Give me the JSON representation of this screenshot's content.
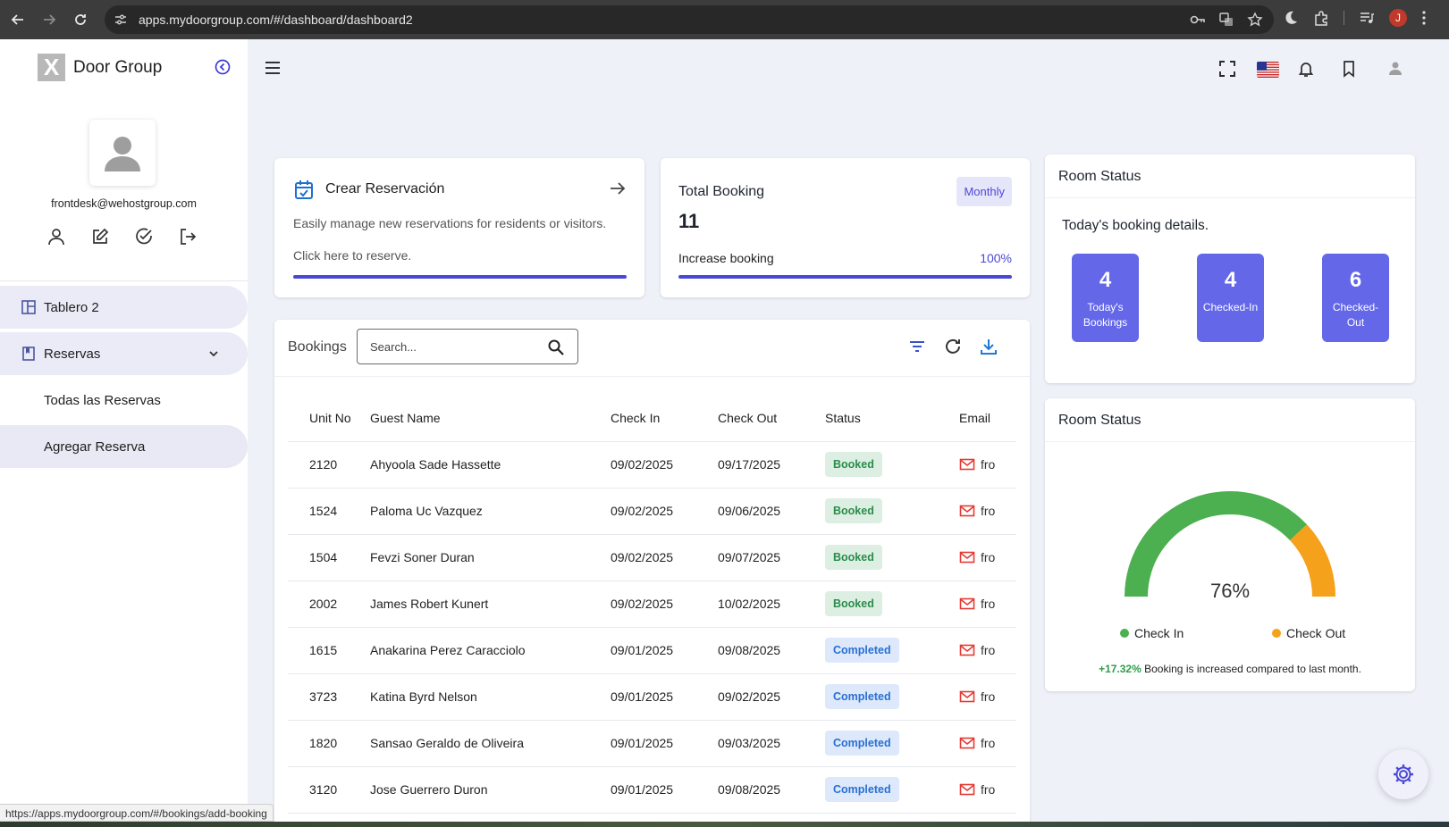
{
  "browser": {
    "url": "apps.mydoorgroup.com/#/dashboard/dashboard2",
    "profile_initial": "J",
    "link_preview": "https://apps.mydoorgroup.com/#/bookings/add-booking"
  },
  "sidebar": {
    "brand_letter": "X",
    "brand_name": "Door Group",
    "user_email": "frontdesk@wehostgroup.com",
    "menu": [
      {
        "label": "Tablero 2",
        "icon": "dashboard-icon"
      },
      {
        "label": "Reservas",
        "icon": "bookmark-icon"
      }
    ],
    "submenu": [
      {
        "label": "Todas las Reservas"
      },
      {
        "label": "Agregar Reserva"
      }
    ]
  },
  "reserve_card": {
    "title": "Crear Reservación",
    "description": "Easily manage new reservations for residents or visitors.",
    "link": "Click here to reserve."
  },
  "booking_card": {
    "title": "Total Booking",
    "badge": "Monthly",
    "count": "11",
    "increase_label": "Increase booking",
    "increase_value": "100%",
    "progress": 1.0
  },
  "bookings": {
    "label": "Bookings",
    "search_placeholder": "Search...",
    "columns": [
      "Unit No",
      "Guest Name",
      "Check In",
      "Check Out",
      "Status",
      "Email"
    ],
    "rows": [
      {
        "unit": "2120",
        "guest": "Ahyoola Sade Hassette",
        "check_in": "09/02/2025",
        "check_out": "09/17/2025",
        "status": "Booked",
        "email": "fro"
      },
      {
        "unit": "1524",
        "guest": "Paloma Uc Vazquez",
        "check_in": "09/02/2025",
        "check_out": "09/06/2025",
        "status": "Booked",
        "email": "fro"
      },
      {
        "unit": "1504",
        "guest": "Fevzi Soner Duran",
        "check_in": "09/02/2025",
        "check_out": "09/07/2025",
        "status": "Booked",
        "email": "fro"
      },
      {
        "unit": "2002",
        "guest": "James Robert Kunert",
        "check_in": "09/02/2025",
        "check_out": "10/02/2025",
        "status": "Booked",
        "email": "fro"
      },
      {
        "unit": "1615",
        "guest": "Anakarina Perez Caracciolo",
        "check_in": "09/01/2025",
        "check_out": "09/08/2025",
        "status": "Completed",
        "email": "fro"
      },
      {
        "unit": "3723",
        "guest": "Katina Byrd Nelson",
        "check_in": "09/01/2025",
        "check_out": "09/02/2025",
        "status": "Completed",
        "email": "fro"
      },
      {
        "unit": "1820",
        "guest": "Sansao Geraldo de Oliveira",
        "check_in": "09/01/2025",
        "check_out": "09/03/2025",
        "status": "Completed",
        "email": "fro"
      },
      {
        "unit": "3120",
        "guest": "Jose Guerrero Duron",
        "check_in": "09/01/2025",
        "check_out": "09/08/2025",
        "status": "Completed",
        "email": "fro"
      }
    ]
  },
  "room_status_1": {
    "title": "Room Status",
    "subtitle": "Today's booking details.",
    "stats": [
      {
        "value": "4",
        "label": "Today's Bookings"
      },
      {
        "value": "4",
        "label": "Checked-In"
      },
      {
        "value": "6",
        "label": "Checked-Out"
      }
    ]
  },
  "room_status_2": {
    "title": "Room Status",
    "gauge_value": "76%",
    "gauge_fraction": 0.76,
    "legend": [
      "Check In",
      "Check Out"
    ],
    "colors": {
      "check_in": "#4caf50",
      "check_out": "#f5a11c"
    },
    "foot_change": "+17.32%",
    "foot_text": " Booking is increased compared to last month."
  },
  "colors": {
    "accent": "#4a48d6",
    "stat_tile": "#6367e8"
  }
}
